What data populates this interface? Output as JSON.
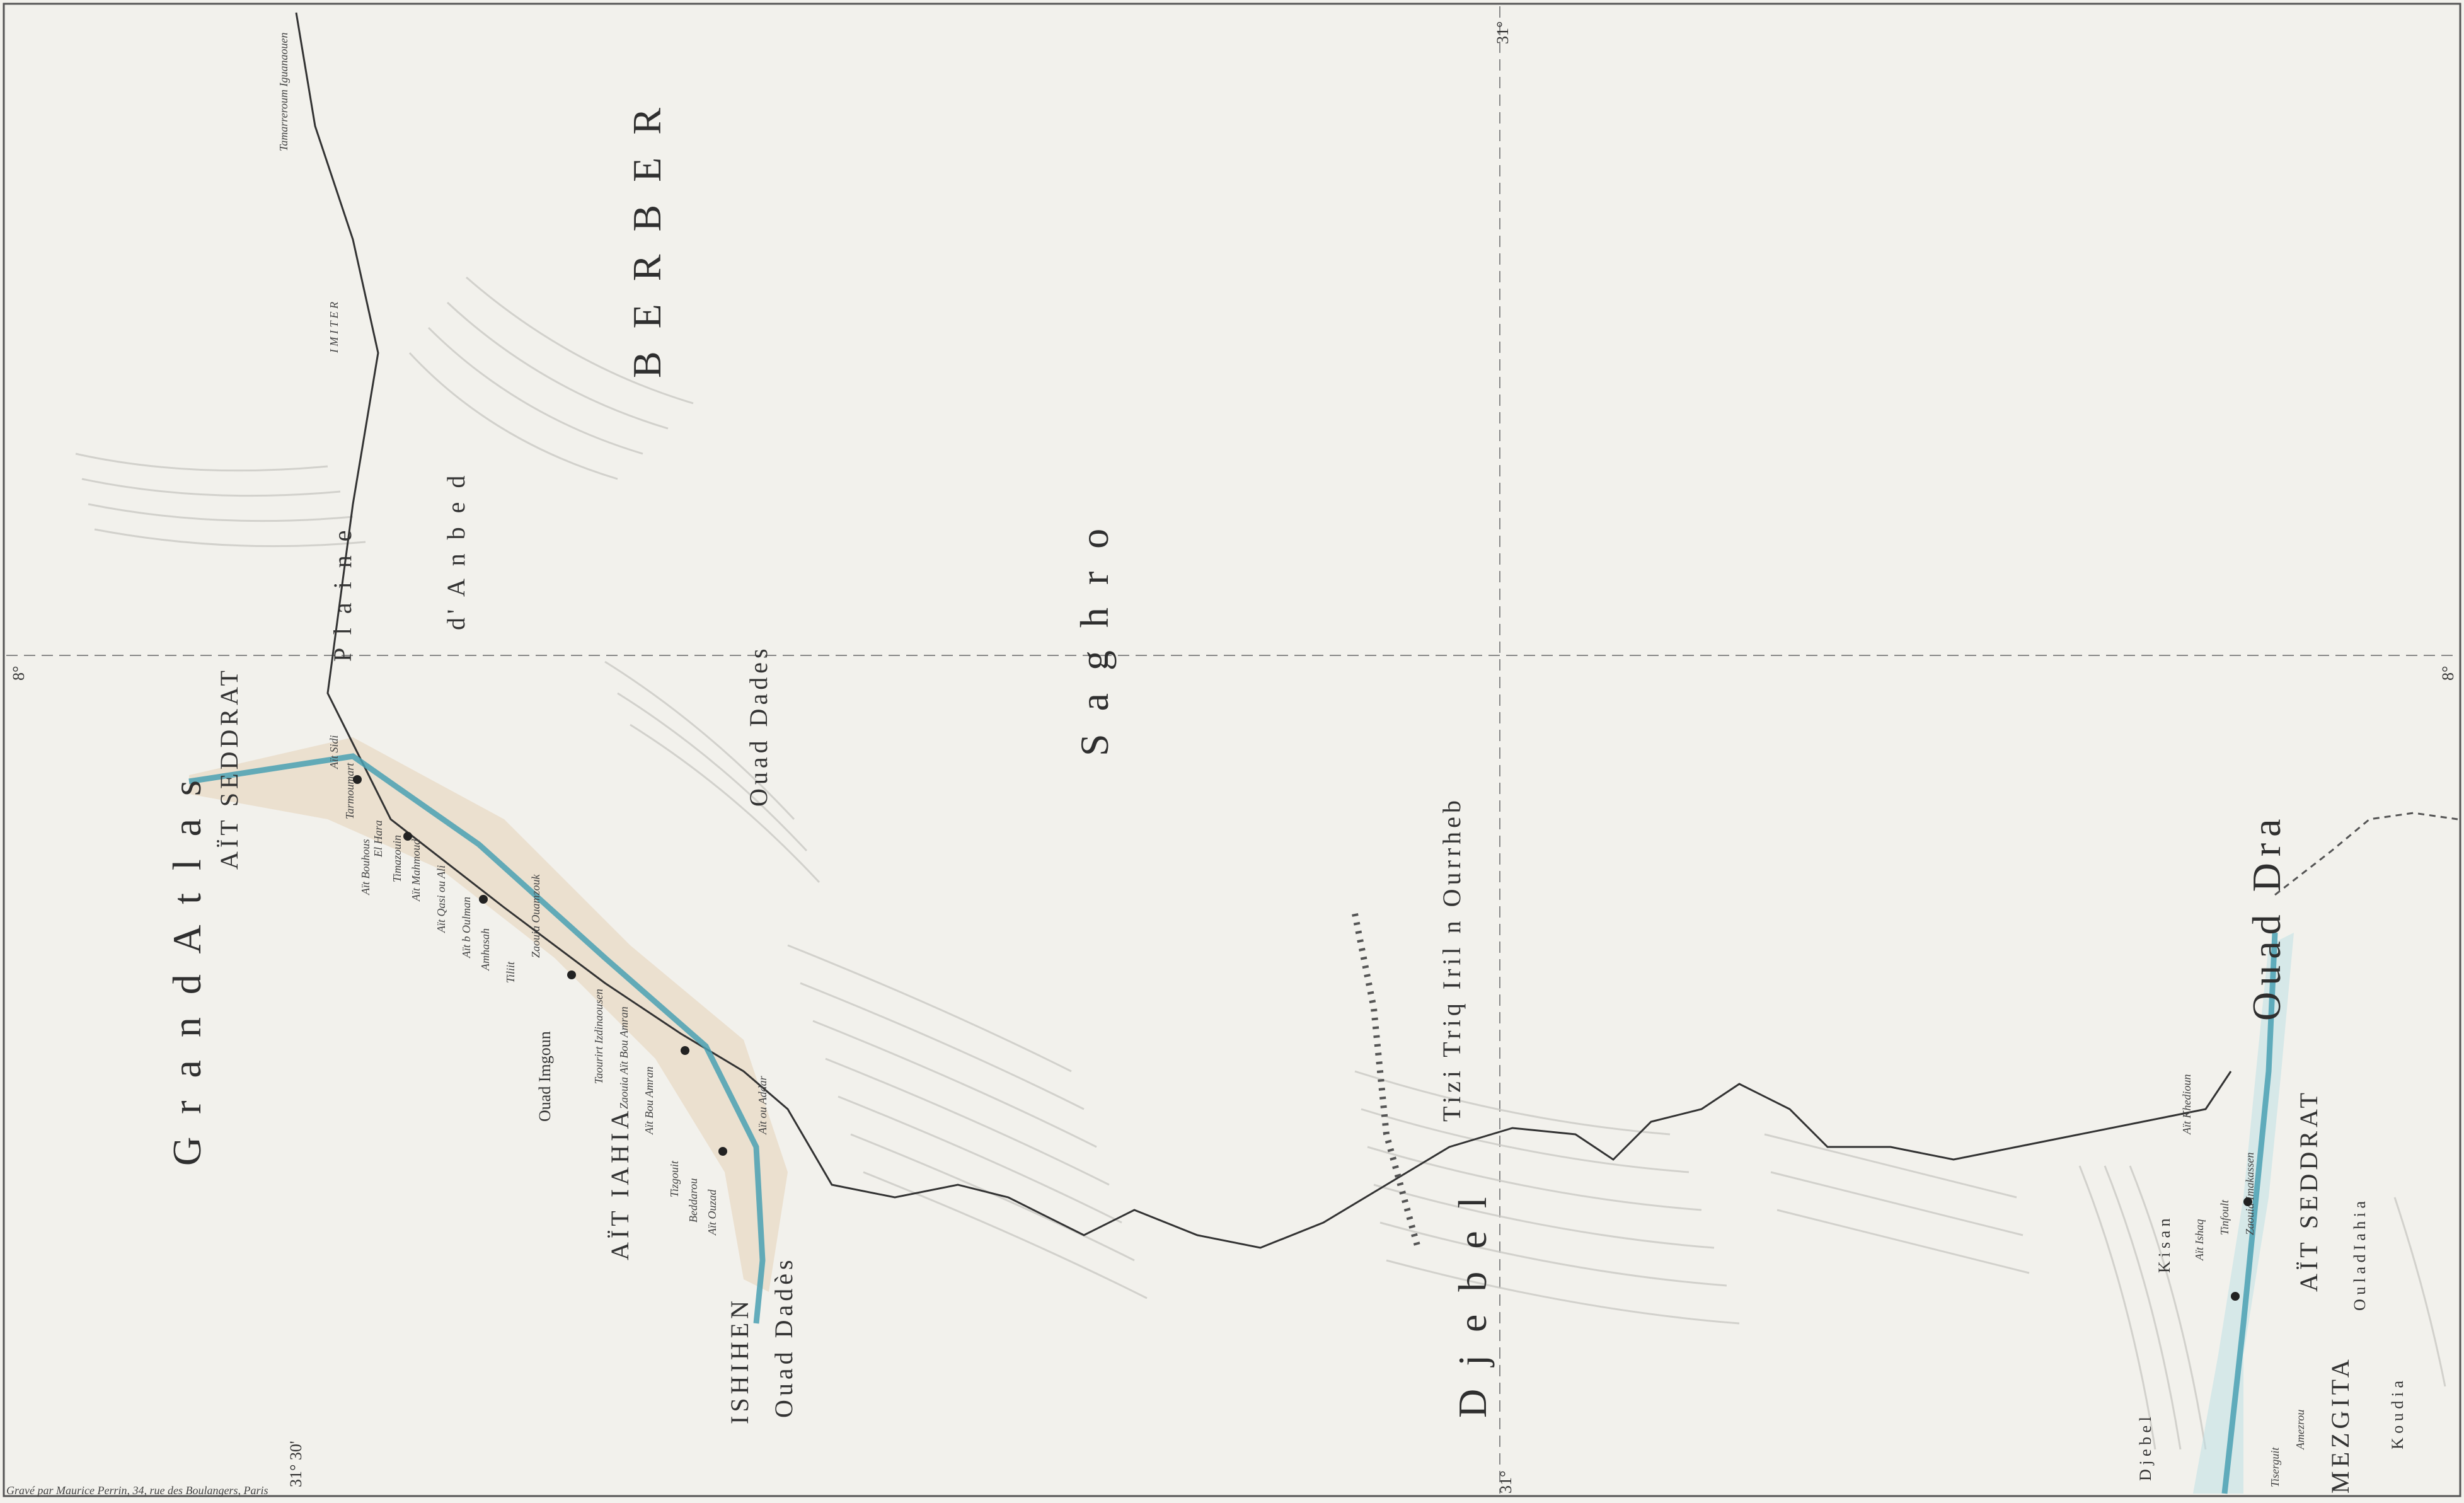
{
  "coords": {
    "lat_top_right": "31°",
    "lat_bottom_right": "31°",
    "lon_left": "8°",
    "lon_right": "8°",
    "lat_bottom_left": "31° 30'"
  },
  "regions": {
    "grand_atlas": "G r a n d   A t l a s",
    "berber": "B E R B E R",
    "plaine": "P l a i n e",
    "imiter": "I M I T E R",
    "anbed": "d' A n b e d",
    "saghro": "S a g h r o",
    "tiliadd": "D j e b e l",
    "ait_yahia": "AÏT IAHIA",
    "ishihen": "ISHIHEN",
    "mezgita": "MEZGITA",
    "ait_seddrat_top": "AÏT SEDDRAT",
    "ait_seddrat_bottom": "AÏT SEDDRAT",
    "oulad_iahia": "O u l a d   I a h i a",
    "koudia": "K o u d i a",
    "kisan": "K i s a n",
    "djebel": "D j e b e l"
  },
  "rivers": {
    "ouad_dades_top": "Ouad Dades",
    "ouad_dades_bottom": "Ouad Dadès",
    "ouad_dra": "Ouad Dra",
    "ouad_imgoun": "Ouad Imgoun",
    "tizi": "Tizi Triq Iril n Ourrheb"
  },
  "places": [
    "Tamarreroum Iguanaouen",
    "Aït Sidi",
    "Tarmoumart",
    "El Hara",
    "Aït Bouhous",
    "Timazouin",
    "Aït Mahmoud",
    "Aït Qasi ou Ali",
    "Aït b Oulman",
    "Amhasah",
    "Tiliit",
    "Zaouia Ouamzouk",
    "Taourirt Izdinaousen",
    "Zaouia Aït Bou Amran",
    "Aït Bou Amran",
    "Tizgouit",
    "Beddarou",
    "Aït Ouzad",
    "Aït ou Addar",
    "Aït Ishaq",
    "Aït Khedioun",
    "Tinfoult",
    "Zaouia Imakassen",
    "Tiserguit",
    "Amezrou"
  ],
  "engraver": "Gravé par Maurice Perrin, 34, rue des Boulangers, Paris"
}
